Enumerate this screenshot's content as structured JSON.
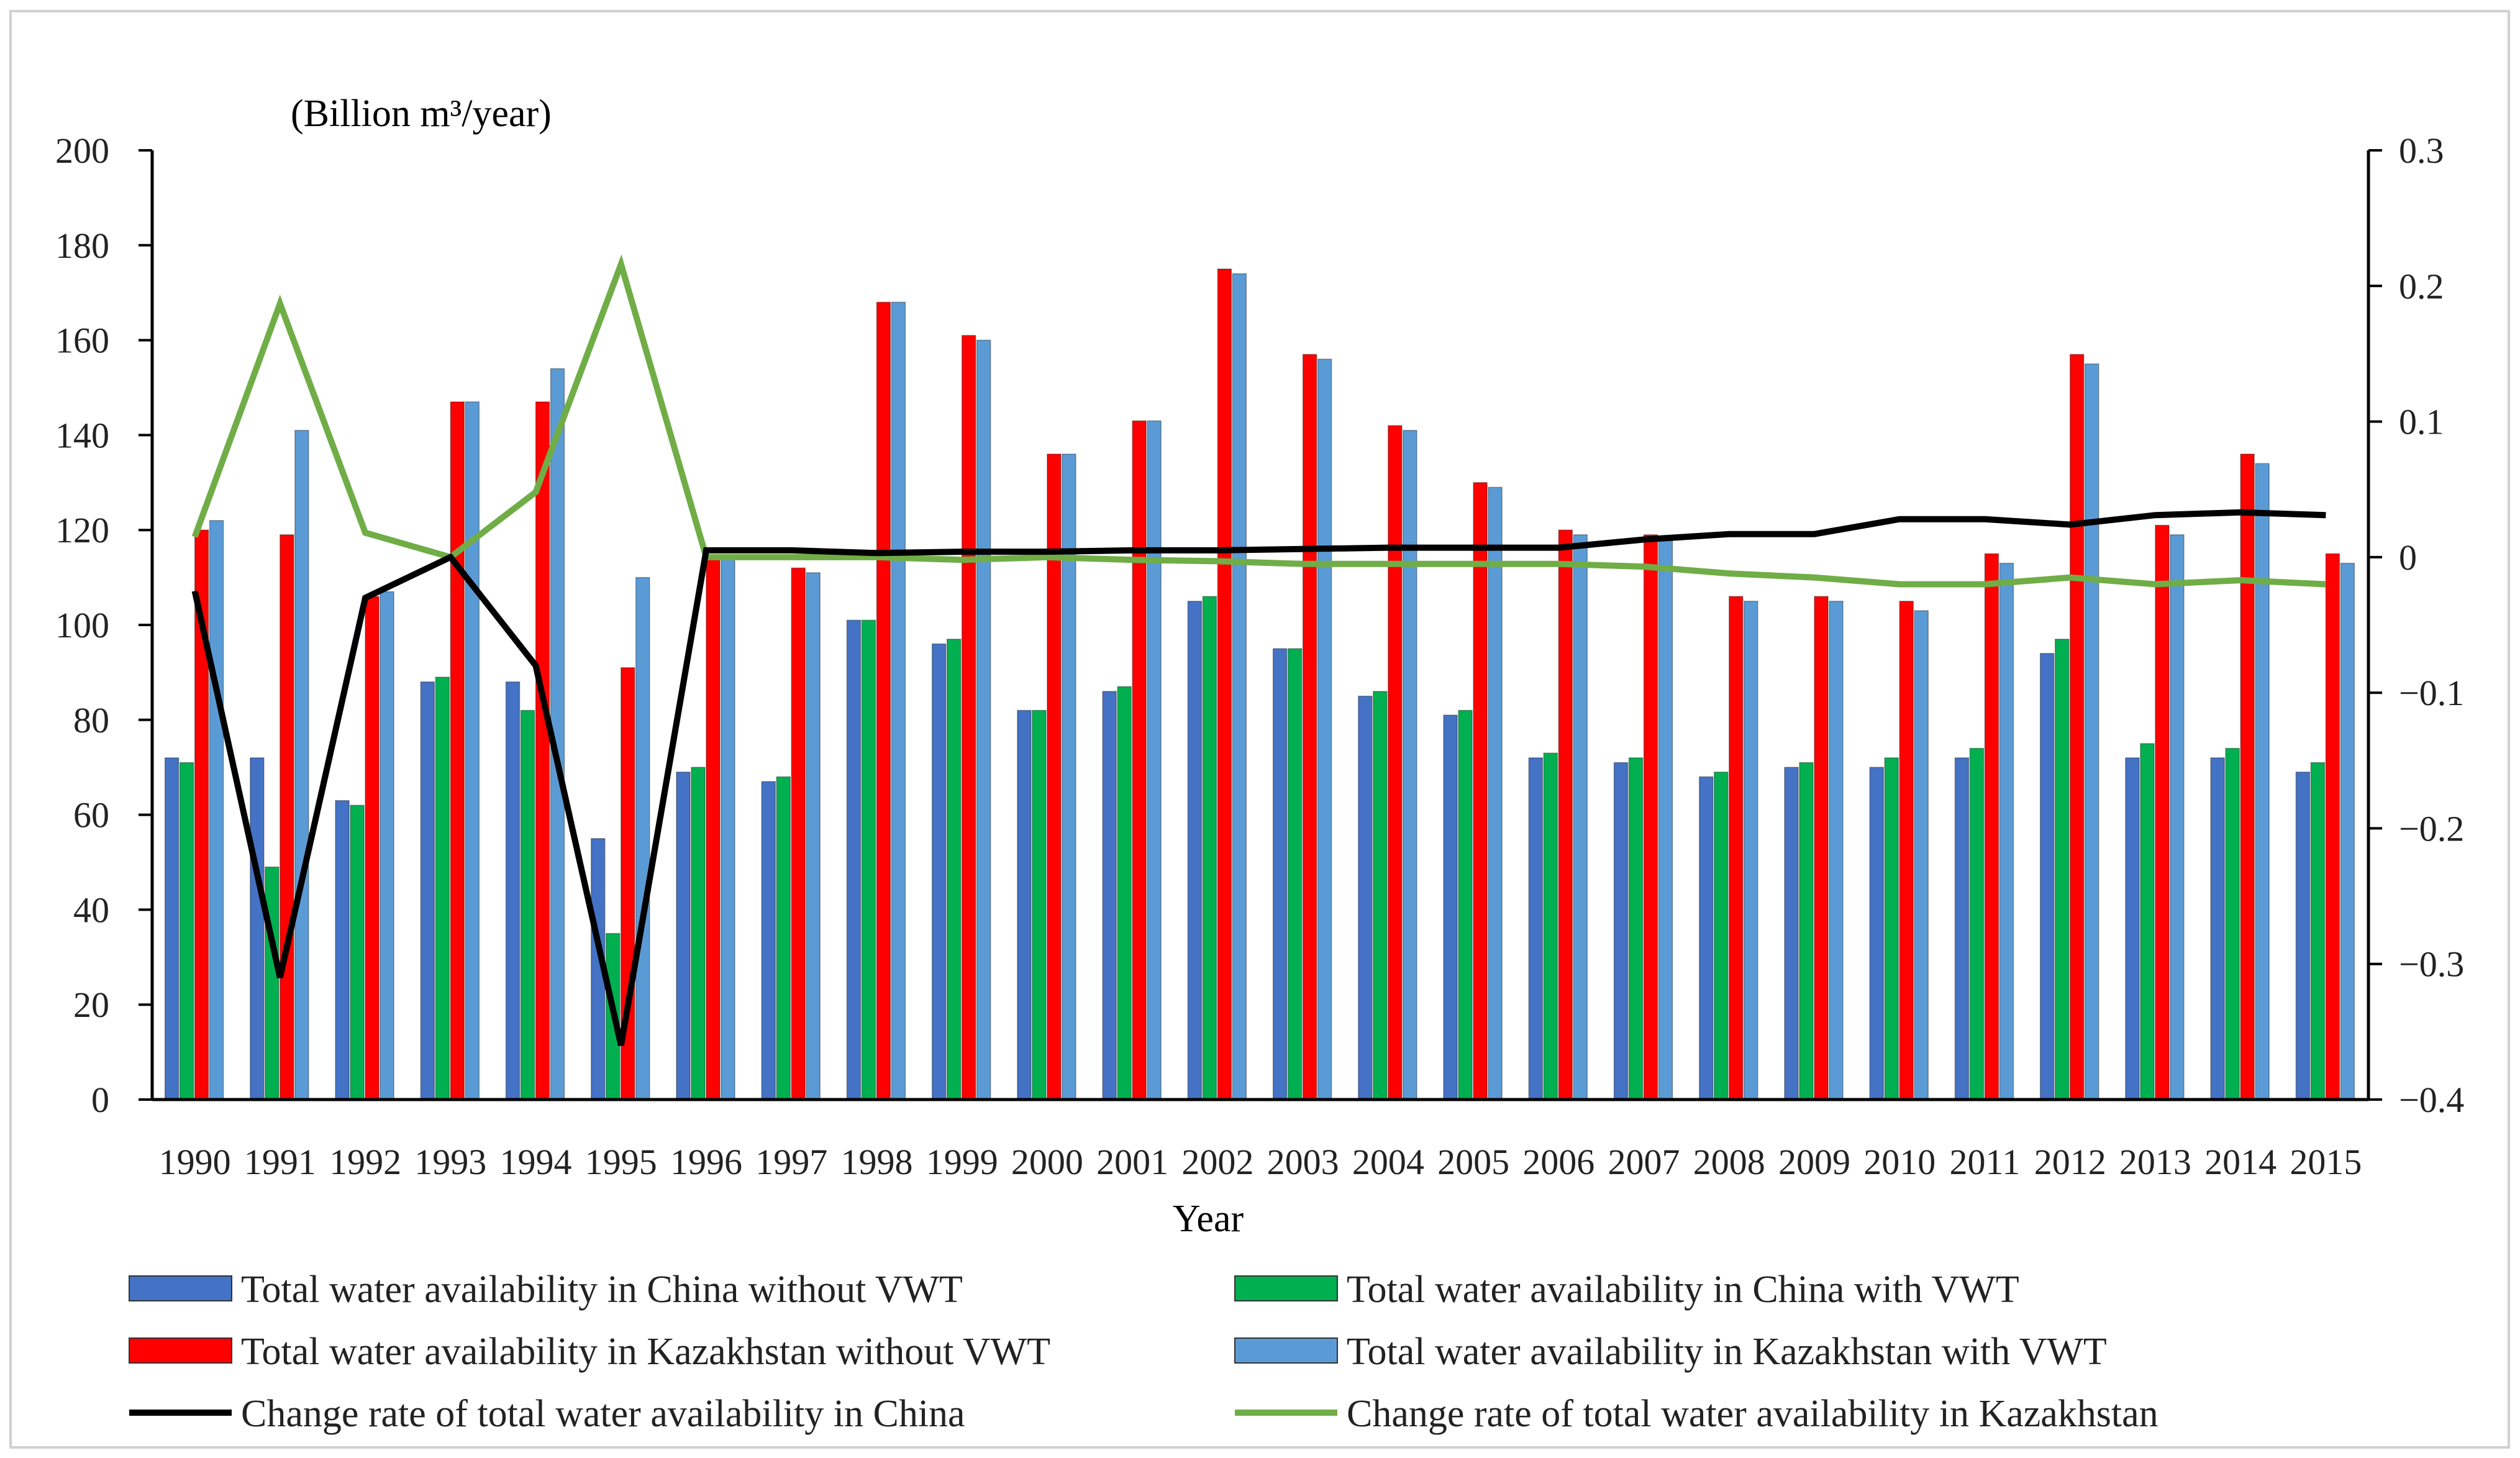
{
  "chart_data": {
    "type": "bar",
    "title": "",
    "xlabel": "Year",
    "ylabel": "(Billion m³/year)",
    "ylim": [
      0,
      200
    ],
    "y_ticks": [
      "0",
      "20",
      "40",
      "60",
      "80",
      "100",
      "120",
      "140",
      "160",
      "180",
      "200"
    ],
    "y2lim": [
      -0.4,
      0.3
    ],
    "y2_ticks": [
      "−0.4",
      "−0.3",
      "−0.2",
      "−0.1",
      "0",
      "0.1",
      "0.2",
      "0.3"
    ],
    "grid": false,
    "legend_position": "bottom",
    "categories": [
      "1990",
      "1991",
      "1992",
      "1993",
      "1994",
      "1995",
      "1996",
      "1997",
      "1998",
      "1999",
      "2000",
      "2001",
      "2002",
      "2003",
      "2004",
      "2005",
      "2006",
      "2007",
      "2008",
      "2009",
      "2010",
      "2011",
      "2012",
      "2013",
      "2014",
      "2015"
    ],
    "series": [
      {
        "name": "Total water availability in China without VWT",
        "kind": "bar",
        "axis": "left",
        "color": "#4472C4",
        "values": [
          72,
          72,
          63,
          88,
          88,
          55,
          69,
          67,
          101,
          96,
          82,
          86,
          105,
          95,
          85,
          81,
          72,
          71,
          68,
          70,
          70,
          72,
          94,
          72,
          72,
          69
        ]
      },
      {
        "name": "Total water availability in China with VWT",
        "kind": "bar",
        "axis": "left",
        "color": "#00B050",
        "values": [
          71,
          49,
          62,
          89,
          82,
          35,
          70,
          68,
          101,
          97,
          82,
          87,
          106,
          95,
          86,
          82,
          73,
          72,
          69,
          71,
          72,
          74,
          97,
          75,
          74,
          71
        ]
      },
      {
        "name": "Total water availability in Kazakhstan without VWT",
        "kind": "bar",
        "axis": "left",
        "color": "#FF0000",
        "values": [
          120,
          119,
          106,
          147,
          147,
          91,
          114,
          112,
          168,
          161,
          136,
          143,
          175,
          157,
          142,
          130,
          120,
          119,
          106,
          106,
          105,
          115,
          157,
          121,
          136,
          115
        ]
      },
      {
        "name": "Total water availability in Kazakhstan with VWT",
        "kind": "bar",
        "axis": "left",
        "color": "#5B9BD5",
        "values": [
          122,
          141,
          107,
          147,
          154,
          110,
          114,
          111,
          168,
          160,
          136,
          143,
          174,
          156,
          141,
          129,
          119,
          118,
          105,
          105,
          103,
          113,
          155,
          119,
          134,
          113
        ]
      },
      {
        "name": "Change rate of total water availability in China",
        "kind": "line",
        "axis": "right",
        "color": "#000000",
        "values": [
          -0.025,
          -0.31,
          -0.03,
          0.0,
          -0.08,
          -0.36,
          0.005,
          0.005,
          0.003,
          0.004,
          0.004,
          0.005,
          0.005,
          0.006,
          0.007,
          0.007,
          0.007,
          0.013,
          0.017,
          0.017,
          0.028,
          0.028,
          0.024,
          0.031,
          0.033,
          0.031
        ]
      },
      {
        "name": "Change rate of total water availability in Kazakhstan",
        "kind": "line",
        "axis": "right",
        "color": "#70AD47",
        "values": [
          0.015,
          0.187,
          0.018,
          0.0,
          0.048,
          0.216,
          0.0,
          0.0,
          0.0,
          -0.002,
          0.0,
          -0.002,
          -0.003,
          -0.005,
          -0.005,
          -0.005,
          -0.005,
          -0.007,
          -0.012,
          -0.015,
          -0.02,
          -0.02,
          -0.015,
          -0.02,
          -0.017,
          -0.02
        ]
      }
    ]
  }
}
